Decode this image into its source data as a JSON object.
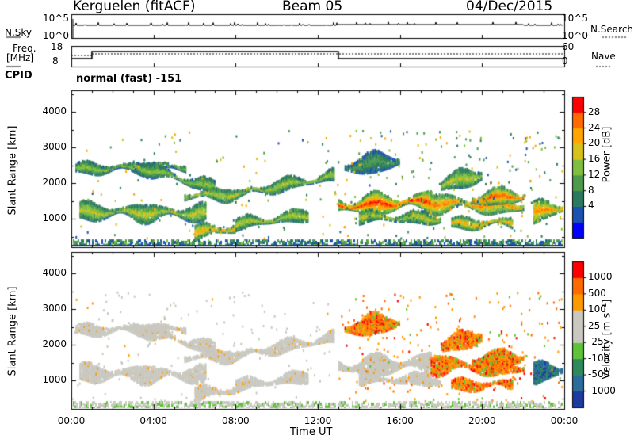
{
  "header": {
    "site": "Kerguelen (fitACF)",
    "beam": "Beam 05",
    "date": "04/Dec/2015"
  },
  "status_panels": {
    "nsky_label": "N.Sky",
    "nsky_ticks": [
      "10^5",
      "10^0"
    ],
    "nsearch_label": "N.Search",
    "nsearch_ticks": [
      "10^5",
      "10^0"
    ],
    "freq_label": "Freq.",
    "freq_unit": "[MHz]",
    "freq_ticks": [
      "18",
      "8"
    ],
    "nave_label": "Nave",
    "nave_ticks": [
      "60",
      "0"
    ],
    "cpid_label": "CPID",
    "cpid_value": "normal (fast) -151"
  },
  "chart_data": [
    {
      "type": "heatmap",
      "name": "power-panel",
      "ylabel": "Slant Range [km]",
      "yticks": [
        1000,
        2000,
        3000,
        4000
      ],
      "ylim": [
        200,
        4600
      ],
      "xlim": [
        0,
        24
      ],
      "colorbar_label": "Power [dB]",
      "colorbar_ticks": [
        "28",
        "24",
        "20",
        "16",
        "12",
        "8",
        "4"
      ],
      "colorbar_range": [
        0,
        32
      ],
      "colormap": [
        "#0000ff",
        "#1a52b0",
        "#2b7a5f",
        "#4d9a4d",
        "#7fbf3f",
        "#d6c21a",
        "#ffa500",
        "#ff6a00",
        "#ff0000"
      ]
    },
    {
      "type": "heatmap",
      "name": "velocity-panel",
      "ylabel": "Slant Range [km]",
      "yticks": [
        1000,
        2000,
        3000,
        4000
      ],
      "ylim": [
        200,
        4600
      ],
      "xlim": [
        0,
        24
      ],
      "colorbar_label": "Velocity [m s⁻¹]",
      "colorbar_ticks": [
        "1000",
        "500",
        "100",
        "25",
        "-25",
        "-100",
        "-500",
        "-1000"
      ],
      "colormap": [
        "#1d3aa0",
        "#2a6c9a",
        "#2e8a5a",
        "#5fc33a",
        "#c8c8c0",
        "#c8c8c0",
        "#ff9900",
        "#ff6a00",
        "#ff0000"
      ],
      "xticks": [
        "00:00",
        "04:00",
        "08:00",
        "12:00",
        "16:00",
        "20:00",
        "00:00"
      ],
      "xlabel": "Time UT"
    }
  ]
}
